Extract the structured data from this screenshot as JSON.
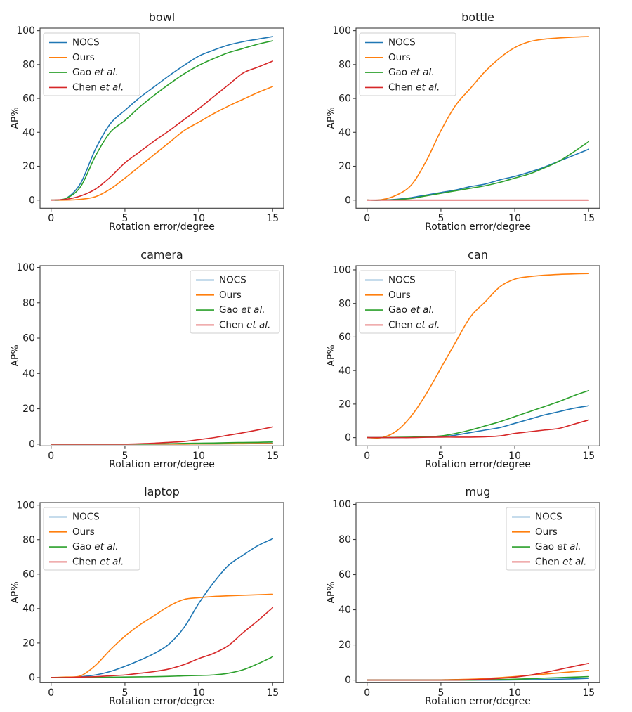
{
  "figure": {
    "background": "#ffffff",
    "text_color": "#1a1a1a",
    "spine_color": "#3c3c3c",
    "legend_border_color": "#cfcfcf",
    "legend_background": "#ffffff"
  },
  "chart_data": [
    {
      "type": "line",
      "title": "bowl",
      "xlabel": "Rotation error/degree",
      "ylabel": "AP%",
      "x": [
        0,
        1,
        2,
        3,
        4,
        5,
        6,
        7,
        8,
        9,
        10,
        11,
        12,
        13,
        14,
        15
      ],
      "xticks": [
        0,
        5,
        10,
        15
      ],
      "yticks": [
        0,
        20,
        40,
        60,
        80,
        100
      ],
      "xlim": [
        -0.75,
        15.75
      ],
      "ylim": [
        -4.8,
        101.5
      ],
      "legend_position": "upper-left",
      "series": [
        {
          "name": "NOCS",
          "label_plain": "NOCS",
          "label_italic": "",
          "color": "#1f77b4",
          "values": [
            0,
            1,
            10,
            30,
            45,
            53,
            60.5,
            67,
            73.5,
            79.5,
            85,
            88.5,
            91.5,
            93.5,
            95,
            96.5
          ]
        },
        {
          "name": "Ours",
          "label_plain": "Ours",
          "label_italic": "",
          "color": "#ff7f0e",
          "values": [
            0,
            0,
            0.5,
            2,
            6.5,
            13,
            20,
            27,
            34,
            41,
            46,
            51,
            55.5,
            59.5,
            63.5,
            67
          ]
        },
        {
          "name": "Gao et al.",
          "label_plain": "Gao ",
          "label_italic": "et al.",
          "color": "#2ca02c",
          "values": [
            0,
            1,
            8,
            26,
            40,
            47,
            55,
            62,
            68.5,
            74.5,
            79.5,
            83.5,
            87,
            89.5,
            92,
            94
          ]
        },
        {
          "name": "Chen et al.",
          "label_plain": "Chen ",
          "label_italic": "et al.",
          "color": "#d62728",
          "values": [
            0,
            0.5,
            2.5,
            6.5,
            13.5,
            22,
            28.5,
            35,
            41,
            47.5,
            54,
            61,
            68,
            75,
            78.5,
            82
          ]
        }
      ]
    },
    {
      "type": "line",
      "title": "bottle",
      "xlabel": "Rotation error/degree",
      "ylabel": "AP%",
      "x": [
        0,
        1,
        2,
        3,
        4,
        5,
        6,
        7,
        8,
        9,
        10,
        11,
        12,
        13,
        14,
        15
      ],
      "xticks": [
        0,
        5,
        10,
        15
      ],
      "yticks": [
        0,
        20,
        40,
        60,
        80,
        100
      ],
      "xlim": [
        -0.75,
        15.75
      ],
      "ylim": [
        -4.8,
        101.5
      ],
      "legend_position": "upper-left",
      "series": [
        {
          "name": "NOCS",
          "label_plain": "NOCS",
          "label_italic": "",
          "color": "#1f77b4",
          "values": [
            0,
            0,
            0.5,
            1.5,
            3,
            4.5,
            6,
            8,
            9.5,
            12,
            14,
            16.5,
            19.5,
            23,
            26.5,
            30
          ]
        },
        {
          "name": "Ours",
          "label_plain": "Ours",
          "label_italic": "",
          "color": "#ff7f0e",
          "values": [
            0,
            0.3,
            3,
            9,
            23,
            41,
            56,
            66,
            76,
            84,
            90,
            93.5,
            95,
            95.7,
            96.2,
            96.5
          ]
        },
        {
          "name": "Gao et al.",
          "label_plain": "Gao ",
          "label_italic": "et al.",
          "color": "#2ca02c",
          "values": [
            0,
            0,
            0.3,
            1,
            2.5,
            4,
            5.5,
            7,
            8.5,
            10.5,
            13,
            15.5,
            19,
            23,
            28.5,
            34.5
          ]
        },
        {
          "name": "Chen et al.",
          "label_plain": "Chen ",
          "label_italic": "et al.",
          "color": "#d62728",
          "values": [
            0,
            0,
            0,
            0,
            0,
            0,
            0,
            0,
            0,
            0,
            0,
            0,
            0,
            0,
            0,
            0
          ]
        }
      ]
    },
    {
      "type": "line",
      "title": "camera",
      "xlabel": "Rotation error/degree",
      "ylabel": "AP%",
      "x": [
        0,
        1,
        2,
        3,
        4,
        5,
        6,
        7,
        8,
        9,
        10,
        11,
        12,
        13,
        14,
        15
      ],
      "xticks": [
        0,
        5,
        10,
        15
      ],
      "yticks": [
        0,
        20,
        40,
        60,
        80,
        100
      ],
      "xlim": [
        -0.75,
        15.75
      ],
      "ylim": [
        -1,
        101
      ],
      "legend_position": "upper-right",
      "series": [
        {
          "name": "NOCS",
          "label_plain": "NOCS",
          "label_italic": "",
          "color": "#1f77b4",
          "values": [
            0,
            0,
            0,
            0,
            0,
            0,
            0,
            0,
            0,
            0,
            0.1,
            0.1,
            0.2,
            0.3,
            0.4,
            0.5
          ]
        },
        {
          "name": "Ours",
          "label_plain": "Ours",
          "label_italic": "",
          "color": "#ff7f0e",
          "values": [
            0,
            0,
            0,
            0,
            0,
            0,
            0,
            0,
            0,
            0,
            0.1,
            0.1,
            0.2,
            0.2,
            0.3,
            0.3
          ]
        },
        {
          "name": "Gao et al.",
          "label_plain": "Gao ",
          "label_italic": "et al.",
          "color": "#2ca02c",
          "values": [
            0,
            0,
            0,
            0,
            0,
            0,
            0,
            0.1,
            0.2,
            0.4,
            0.5,
            0.6,
            0.8,
            0.9,
            1,
            1.2
          ]
        },
        {
          "name": "Chen et al.",
          "label_plain": "Chen ",
          "label_italic": "et al.",
          "color": "#d62728",
          "values": [
            0,
            0,
            0,
            0,
            0,
            0,
            0.2,
            0.5,
            1,
            1.5,
            2.5,
            3.6,
            5,
            6.4,
            8,
            9.7
          ]
        }
      ]
    },
    {
      "type": "line",
      "title": "can",
      "xlabel": "Rotation error/degree",
      "ylabel": "AP%",
      "x": [
        0,
        1,
        2,
        3,
        4,
        5,
        6,
        7,
        8,
        9,
        10,
        11,
        12,
        13,
        14,
        15
      ],
      "xticks": [
        0,
        5,
        10,
        15
      ],
      "yticks": [
        0,
        20,
        40,
        60,
        80,
        100
      ],
      "xlim": [
        -0.75,
        15.75
      ],
      "ylim": [
        -4.9,
        102.5
      ],
      "legend_position": "upper-left",
      "series": [
        {
          "name": "NOCS",
          "label_plain": "NOCS",
          "label_italic": "",
          "color": "#1f77b4",
          "values": [
            0,
            0,
            0,
            0.2,
            0.3,
            0.5,
            1.5,
            3,
            4.5,
            6,
            8.5,
            11,
            13.5,
            15.5,
            17.5,
            19
          ]
        },
        {
          "name": "Ours",
          "label_plain": "Ours",
          "label_italic": "",
          "color": "#ff7f0e",
          "values": [
            0,
            0,
            4,
            13,
            26,
            41.5,
            57,
            72,
            81,
            90,
            94.5,
            96,
            96.8,
            97.3,
            97.6,
            97.8
          ]
        },
        {
          "name": "Gao et al.",
          "label_plain": "Gao ",
          "label_italic": "et al.",
          "color": "#2ca02c",
          "values": [
            0,
            0,
            0.2,
            0.3,
            0.5,
            1,
            2.5,
            4.5,
            7,
            9.5,
            12.5,
            15.5,
            18.5,
            21.5,
            25,
            28
          ]
        },
        {
          "name": "Chen et al.",
          "label_plain": "Chen ",
          "label_italic": "et al.",
          "color": "#d62728",
          "values": [
            0,
            0,
            0,
            0,
            0.2,
            0.3,
            0.3,
            0.3,
            0.5,
            1,
            2.5,
            3.5,
            4.5,
            5.5,
            8,
            10.5
          ]
        }
      ]
    },
    {
      "type": "line",
      "title": "laptop",
      "xlabel": "Rotation error/degree",
      "ylabel": "AP%",
      "x": [
        0,
        1,
        2,
        3,
        4,
        5,
        6,
        7,
        8,
        9,
        10,
        11,
        12,
        13,
        14,
        15
      ],
      "xticks": [
        0,
        5,
        10,
        15
      ],
      "yticks": [
        0,
        20,
        40,
        60,
        80,
        100
      ],
      "xlim": [
        -0.75,
        15.75
      ],
      "ylim": [
        -3,
        101.5
      ],
      "legend_position": "upper-left",
      "series": [
        {
          "name": "NOCS",
          "label_plain": "NOCS",
          "label_italic": "",
          "color": "#1f77b4",
          "values": [
            0,
            0,
            0.5,
            1.5,
            3.5,
            6.5,
            10,
            14,
            19.5,
            29,
            43,
            55,
            65,
            71,
            76.5,
            80.5
          ]
        },
        {
          "name": "Ours",
          "label_plain": "Ours",
          "label_italic": "",
          "color": "#ff7f0e",
          "values": [
            0,
            0.3,
            1,
            7,
            16,
            24,
            30.5,
            36,
            41.5,
            45.3,
            46.3,
            47,
            47.4,
            47.7,
            48,
            48.3
          ]
        },
        {
          "name": "Gao et al.",
          "label_plain": "Gao ",
          "label_italic": "et al.",
          "color": "#2ca02c",
          "values": [
            0,
            0,
            0,
            0,
            0.2,
            0.3,
            0.4,
            0.5,
            0.7,
            1,
            1.2,
            1.5,
            2.5,
            4.5,
            8,
            12
          ]
        },
        {
          "name": "Chen et al.",
          "label_plain": "Chen ",
          "label_italic": "et al.",
          "color": "#d62728",
          "values": [
            0,
            0,
            0.3,
            0.5,
            1,
            1.5,
            2.5,
            3.5,
            5,
            7.5,
            11,
            14,
            18.5,
            26,
            33,
            40.5
          ]
        }
      ]
    },
    {
      "type": "line",
      "title": "mug",
      "xlabel": "Rotation error/degree",
      "ylabel": "AP%",
      "x": [
        0,
        1,
        2,
        3,
        4,
        5,
        6,
        7,
        8,
        9,
        10,
        11,
        12,
        13,
        14,
        15
      ],
      "xticks": [
        0,
        5,
        10,
        15
      ],
      "yticks": [
        0,
        20,
        40,
        60,
        80,
        100
      ],
      "xlim": [
        -0.75,
        15.75
      ],
      "ylim": [
        -1.5,
        101
      ],
      "legend_position": "upper-right",
      "series": [
        {
          "name": "NOCS",
          "label_plain": "NOCS",
          "label_italic": "",
          "color": "#1f77b4",
          "values": [
            0,
            0,
            0,
            0,
            0,
            0,
            0,
            0,
            0,
            0,
            0.1,
            0.2,
            0.3,
            0.5,
            0.7,
            1
          ]
        },
        {
          "name": "Ours",
          "label_plain": "Ours",
          "label_italic": "",
          "color": "#ff7f0e",
          "values": [
            0,
            0,
            0,
            0,
            0,
            0.1,
            0.3,
            0.5,
            0.9,
            1.4,
            2,
            2.7,
            3.4,
            4.1,
            4.8,
            5.5
          ]
        },
        {
          "name": "Gao et al.",
          "label_plain": "Gao ",
          "label_italic": "et al.",
          "color": "#2ca02c",
          "values": [
            0,
            0,
            0,
            0,
            0,
            0,
            0,
            0,
            0.2,
            0.3,
            0.5,
            0.8,
            1.1,
            1.4,
            1.7,
            2
          ]
        },
        {
          "name": "Chen et al.",
          "label_plain": "Chen ",
          "label_italic": "et al.",
          "color": "#d62728",
          "values": [
            0,
            0,
            0,
            0,
            0,
            0,
            0,
            0.2,
            0.5,
            1,
            1.7,
            2.8,
            4.3,
            6,
            7.8,
            9.5
          ]
        }
      ]
    }
  ]
}
